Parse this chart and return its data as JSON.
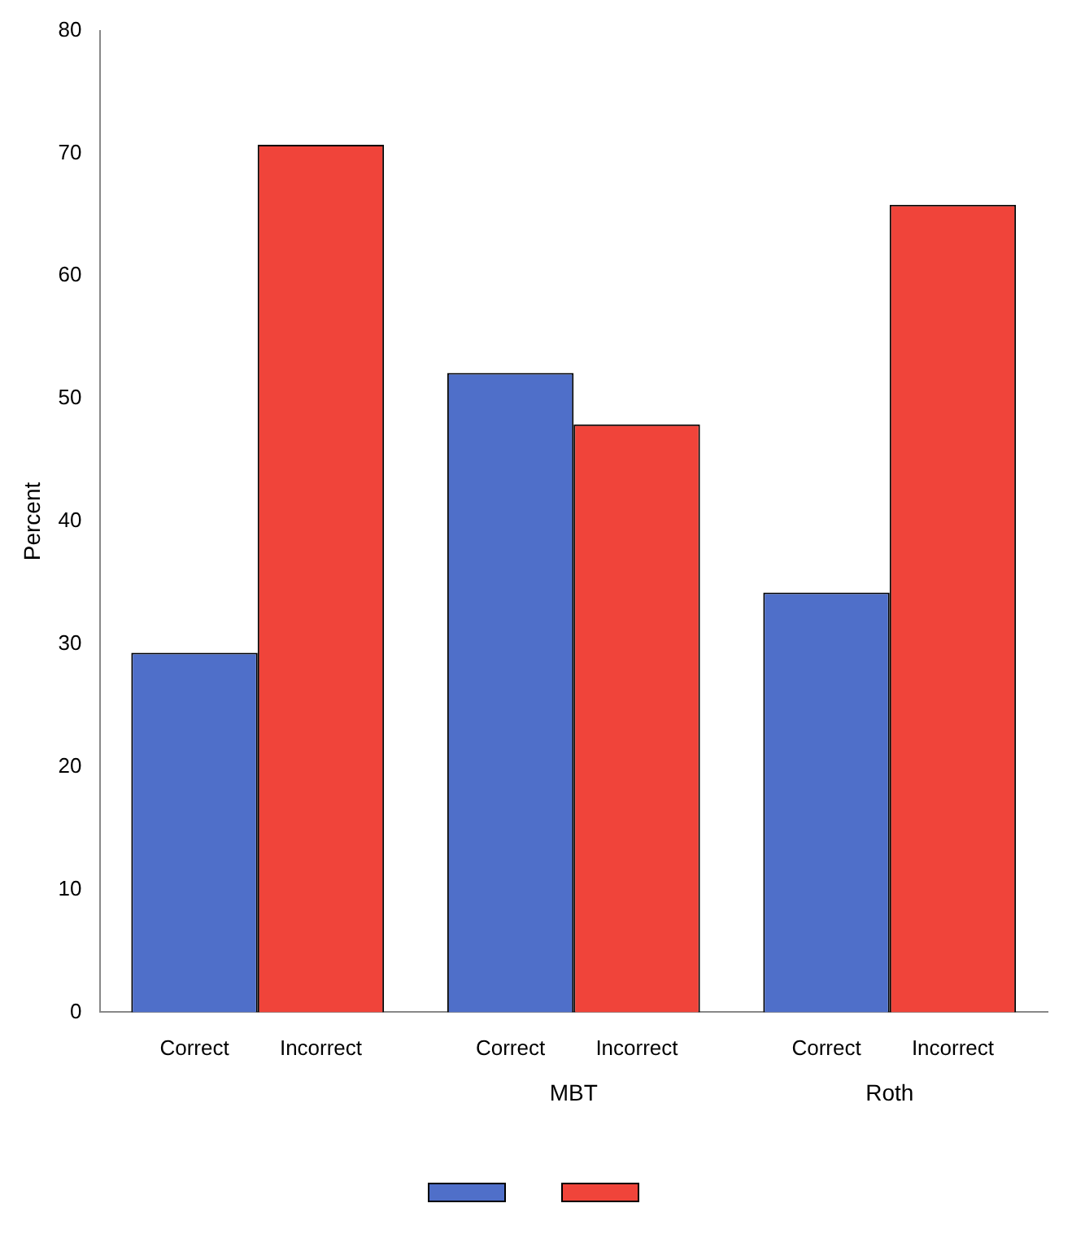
{
  "chart_data": {
    "type": "bar",
    "ylabel": "Percent",
    "categories": [
      null,
      "MBT",
      "Roth"
    ],
    "series": [
      {
        "name": "Correct",
        "color": "#4f6fc9",
        "values": [
          29.3,
          52.1,
          34.2
        ]
      },
      {
        "name": "Incorrect",
        "color": "#f0443a",
        "values": [
          70.7,
          47.9,
          65.8
        ]
      }
    ],
    "ylim": [
      0,
      80
    ],
    "yticks": [
      0,
      10,
      20,
      30,
      40,
      50,
      60,
      70,
      80
    ],
    "grid": false,
    "legend": "bottom"
  }
}
